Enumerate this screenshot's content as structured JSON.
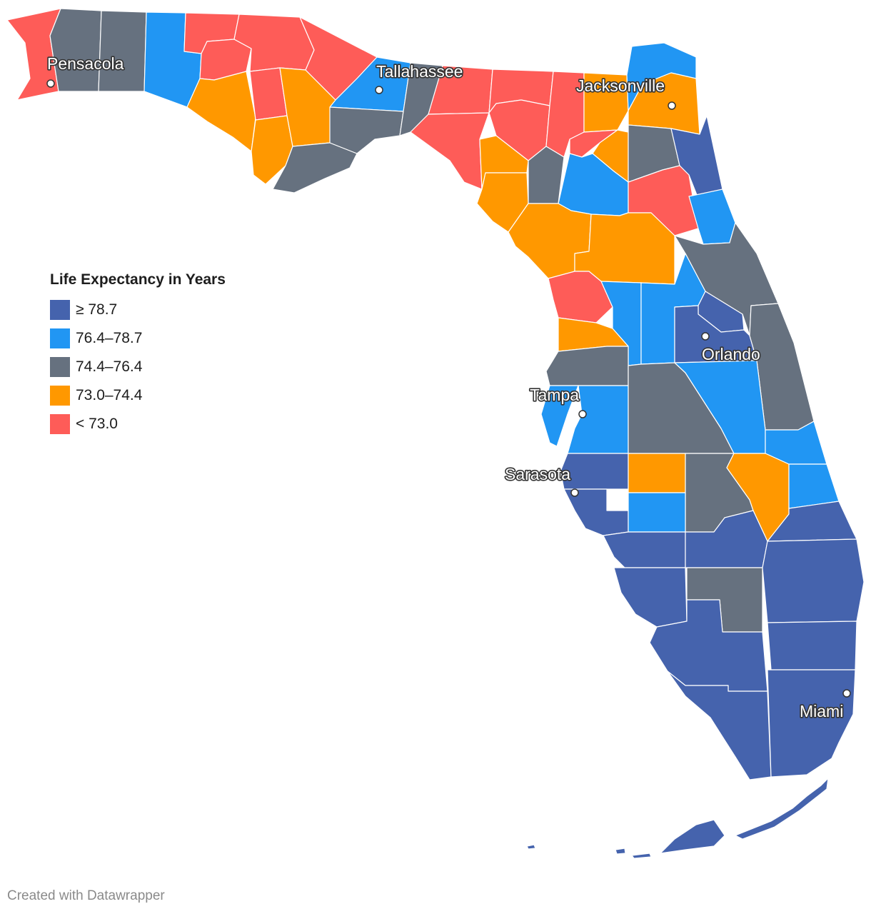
{
  "colors": {
    "c1": "#4563ad",
    "c2": "#2196f3",
    "c3": "#66717f",
    "c4": "#ff9800",
    "c5": "#fe5c58"
  },
  "legend": {
    "title": "Life Expectancy in Years",
    "items": [
      {
        "label": "≥ 78.7",
        "color_key": "c1"
      },
      {
        "label": "76.4–78.7",
        "color_key": "c2"
      },
      {
        "label": "74.4–76.4",
        "color_key": "c3"
      },
      {
        "label": "73.0–74.4",
        "color_key": "c4"
      },
      {
        "label": "< 73.0",
        "color_key": "c5"
      }
    ]
  },
  "cities": [
    {
      "name": "Pensacola"
    },
    {
      "name": "Tallahassee"
    },
    {
      "name": "Jacksonville"
    },
    {
      "name": "Orlando"
    },
    {
      "name": "Tampa"
    },
    {
      "name": "Sarasota"
    },
    {
      "name": "Miami"
    }
  ],
  "credit": "Created with Datawrapper"
}
